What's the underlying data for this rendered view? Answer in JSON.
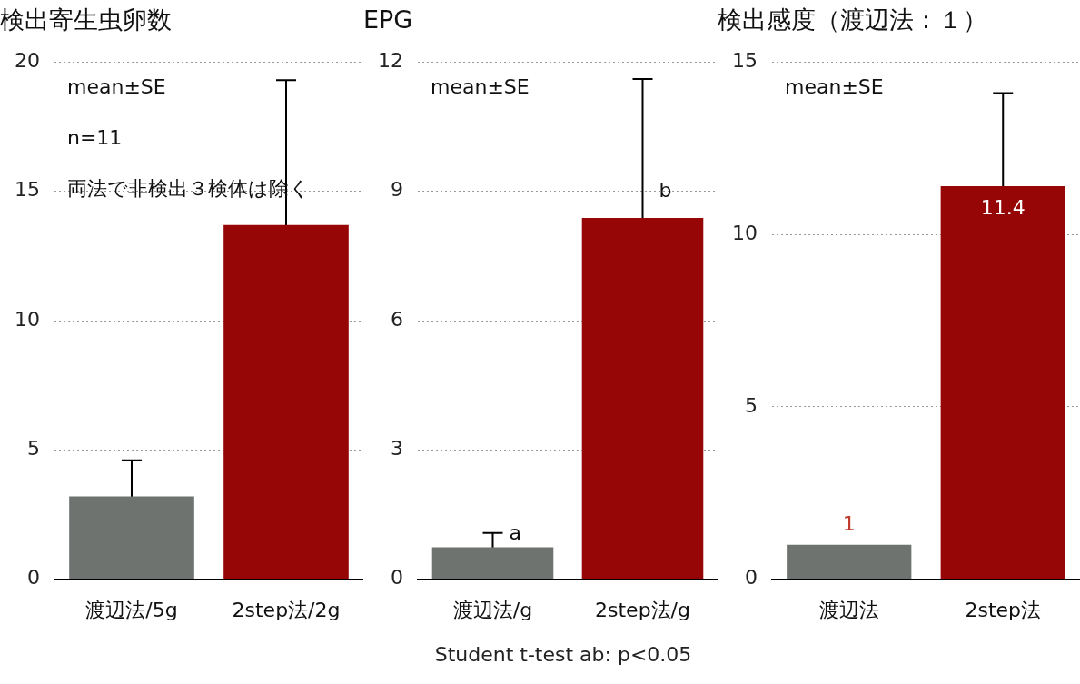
{
  "chart_data": [
    {
      "type": "bar",
      "title": "検出寄生虫卵数",
      "categories": [
        "渡辺法/5g",
        "2step法/2g"
      ],
      "values": [
        3.2,
        13.7
      ],
      "errors": [
        1.4,
        5.6
      ],
      "colors": [
        "#6e7370",
        "#960606"
      ],
      "ylim": [
        0,
        20
      ],
      "yticks": [
        0,
        5,
        10,
        15,
        20
      ],
      "grid": "y",
      "legend": false,
      "annotations": [
        "mean±SE",
        "n=11",
        "両法で非検出３検体は除く"
      ]
    },
    {
      "type": "bar",
      "title": "EPG",
      "categories": [
        "渡辺法/g",
        "2step法/g"
      ],
      "values": [
        0.74,
        8.38
      ],
      "errors": [
        0.33,
        3.23
      ],
      "colors": [
        "#6e7370",
        "#960606"
      ],
      "ylim": [
        0,
        12
      ],
      "yticks": [
        0,
        3,
        6,
        9,
        12
      ],
      "grid": "y",
      "legend": false,
      "annotations": [
        "mean±SE",
        {
          "text": "a",
          "x": "渡辺法/g",
          "y": 1.07
        },
        {
          "text": "b",
          "x": "2step法/g",
          "y": 9
        },
        "Student t-test ab: p<0.05"
      ]
    },
    {
      "type": "bar",
      "title": "検出感度（渡辺法：１）",
      "categories": [
        "渡辺法",
        "2step法"
      ],
      "values": [
        1,
        11.4
      ],
      "errors": [
        null,
        2.7
      ],
      "colors": [
        "#6e7370",
        "#960606"
      ],
      "ylim": [
        0,
        15
      ],
      "yticks": [
        0,
        5,
        10,
        15
      ],
      "grid": "y",
      "legend": false,
      "data_labels": true,
      "annotations": [
        "mean±SE"
      ]
    }
  ]
}
